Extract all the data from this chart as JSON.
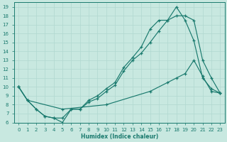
{
  "xlabel": "Humidex (Indice chaleur)",
  "xlim": [
    -0.5,
    23.5
  ],
  "ylim": [
    6,
    19.5
  ],
  "xticks": [
    0,
    1,
    2,
    3,
    4,
    5,
    6,
    7,
    8,
    9,
    10,
    11,
    12,
    13,
    14,
    15,
    16,
    17,
    18,
    19,
    20,
    21,
    22,
    23
  ],
  "yticks": [
    6,
    7,
    8,
    9,
    10,
    11,
    12,
    13,
    14,
    15,
    16,
    17,
    18,
    19
  ],
  "bg_color": "#c8e8e0",
  "grid_color": "#b0d8d0",
  "line_color": "#1a7a6e",
  "curve1_x": [
    0,
    1,
    2,
    3,
    4,
    5,
    6,
    7,
    8,
    9,
    10,
    11,
    12,
    13,
    14,
    15,
    16,
    17,
    18,
    19,
    20,
    21,
    22,
    23
  ],
  "curve1_y": [
    10.0,
    8.5,
    7.5,
    6.7,
    6.5,
    6.0,
    7.5,
    7.5,
    8.5,
    9.0,
    9.8,
    10.5,
    12.2,
    13.3,
    14.5,
    16.5,
    17.5,
    17.5,
    19.0,
    17.5,
    15.2,
    11.0,
    9.8,
    9.3
  ],
  "curve2_x": [
    0,
    1,
    2,
    3,
    4,
    5,
    6,
    7,
    8,
    9,
    10,
    11,
    12,
    13,
    14,
    15,
    16,
    17,
    18,
    19,
    20,
    21,
    22,
    23
  ],
  "curve2_y": [
    10.0,
    8.5,
    7.5,
    6.7,
    6.5,
    6.5,
    7.5,
    7.5,
    8.3,
    8.7,
    9.5,
    10.2,
    11.8,
    13.0,
    13.8,
    15.0,
    16.3,
    17.5,
    18.0,
    18.0,
    17.5,
    13.0,
    11.0,
    9.3
  ],
  "curve3_x": [
    0,
    1,
    5,
    10,
    15,
    17,
    18,
    19,
    20,
    21,
    22,
    23
  ],
  "curve3_y": [
    10.0,
    8.5,
    7.5,
    8.0,
    9.5,
    10.5,
    11.0,
    11.5,
    13.0,
    11.2,
    9.5,
    9.3
  ]
}
